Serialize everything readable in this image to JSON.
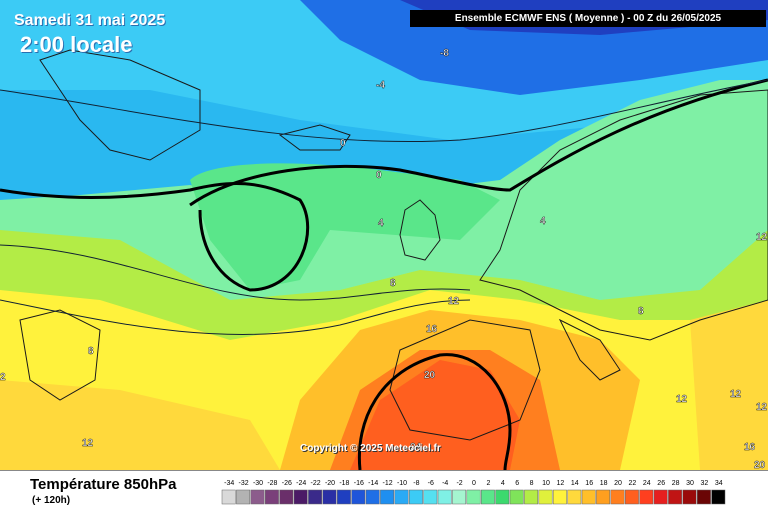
{
  "header": {
    "date": "Samedi 31 mai 2025",
    "time": "2:00 locale",
    "model": "Ensemble ECMWF ENS  ( Moyenne )  -  00 Z du 26/05/2025"
  },
  "copyright": "Copyright © 2025 Meteociel.fr",
  "parameter": {
    "title": "Température 850hPa",
    "subtitle": "(+ 120h)"
  },
  "legend": {
    "values": [
      "-34",
      "-32",
      "-30",
      "-28",
      "-26",
      "-24",
      "-22",
      "-20",
      "-18",
      "-16",
      "-14",
      "-12",
      "-10",
      "-8",
      "-6",
      "-4",
      "-2",
      "0",
      "2",
      "4",
      "6",
      "8",
      "10",
      "12",
      "14",
      "16",
      "18",
      "20",
      "22",
      "24",
      "26",
      "28",
      "30",
      "32",
      "34"
    ],
    "colors": [
      "#d9d9d9",
      "#b3b3b3",
      "#8c5c8c",
      "#7a3f7a",
      "#6a2f6a",
      "#4b1a66",
      "#3a2a8a",
      "#2a2fa5",
      "#1f3fc0",
      "#1f55d9",
      "#1f6fe6",
      "#1f8ff0",
      "#2aaaf5",
      "#3ccbf5",
      "#55e0f0",
      "#7ff0e5",
      "#a5f5d0",
      "#7ff0a5",
      "#5ae68a",
      "#3cd96e",
      "#7fe35a",
      "#b3ec46",
      "#e0f03c",
      "#fff23c",
      "#ffd93c",
      "#ffbf2a",
      "#ff9f1f",
      "#ff7f1f",
      "#ff5f1f",
      "#ff3f1f",
      "#e61f1f",
      "#c01414",
      "#9a0a0a",
      "#6a0505",
      "#000000"
    ]
  },
  "map_labels": [
    "-8",
    "-4",
    "0",
    "0",
    "4",
    "4",
    "8",
    "8",
    "12",
    "12",
    "16",
    "20",
    "24",
    "12",
    "12",
    "8",
    "12",
    "16",
    "20",
    "12",
    "2"
  ]
}
